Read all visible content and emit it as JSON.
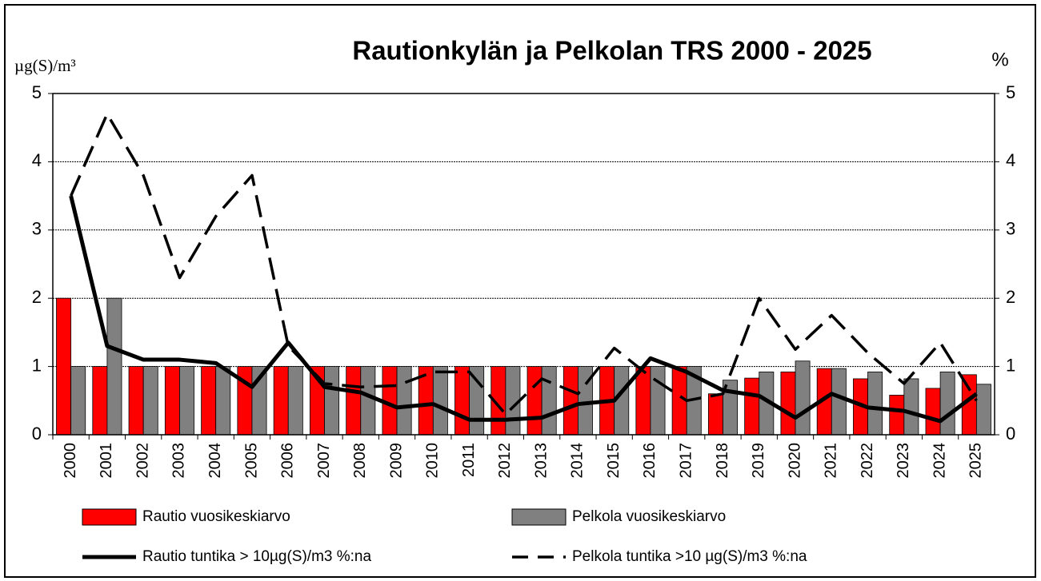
{
  "chart_data": {
    "type": "bar",
    "title": "Rautionkylän ja Pelkolan TRS 2000 - 2025",
    "y_label": "µg(S)/m³",
    "y2_label": "%",
    "categories": [
      "2000",
      "2001",
      "2002",
      "2003",
      "2004",
      "2005",
      "2006",
      "2007",
      "2008",
      "2009",
      "2010",
      "2011",
      "2012",
      "2013",
      "2014",
      "2015",
      "2016",
      "2017",
      "2018",
      "2019",
      "2020",
      "2021",
      "2022",
      "2023",
      "2024",
      "2025"
    ],
    "ylim": [
      0,
      5
    ],
    "yticks": [
      0,
      1,
      2,
      3,
      4,
      5
    ],
    "y2lim": [
      0,
      5
    ],
    "y2ticks": [
      0,
      1,
      2,
      3,
      4,
      5
    ],
    "grid": true,
    "series": [
      {
        "name": "Rautio vuosikeskiarvo",
        "type": "bar",
        "color": "#ff0000",
        "values": [
          2.0,
          1,
          1,
          1,
          1,
          1,
          1,
          1,
          1,
          1,
          1,
          1,
          1,
          1,
          1,
          1,
          1,
          1,
          0.6,
          0.83,
          0.92,
          0.97,
          0.82,
          0.58,
          0.68,
          0.88
        ]
      },
      {
        "name": "Pelkola vuosikeskiarvo",
        "type": "bar",
        "color": "#808080",
        "values": [
          1,
          2.0,
          1,
          1,
          1,
          1,
          1,
          1,
          1,
          1,
          1,
          1,
          1,
          1,
          1,
          1,
          1,
          1,
          0.8,
          0.92,
          1.08,
          0.97,
          0.92,
          0.82,
          0.92,
          0.74
        ]
      },
      {
        "name": "Rautio tuntika > 10µg(S)/m3 %:na",
        "type": "line",
        "axis": "y2",
        "color": "#000000",
        "dash": false,
        "values": [
          3.5,
          1.3,
          1.1,
          1.1,
          1.05,
          0.7,
          1.35,
          0.7,
          0.62,
          0.4,
          0.45,
          0.22,
          0.22,
          0.25,
          0.45,
          0.5,
          1.12,
          0.92,
          0.65,
          0.57,
          0.25,
          0.6,
          0.4,
          0.35,
          0.2,
          0.6
        ]
      },
      {
        "name": "Pelkola tuntika >10 µg(S)/m3 %:na",
        "type": "line",
        "axis": "y2",
        "color": "#000000",
        "dash": true,
        "values": [
          3.5,
          4.7,
          3.8,
          2.3,
          3.2,
          3.8,
          1.3,
          0.75,
          0.7,
          0.72,
          0.92,
          0.92,
          0.3,
          0.82,
          0.6,
          1.27,
          0.85,
          0.5,
          0.6,
          2.0,
          1.25,
          1.75,
          1.2,
          0.75,
          1.35,
          0.5
        ]
      }
    ]
  }
}
